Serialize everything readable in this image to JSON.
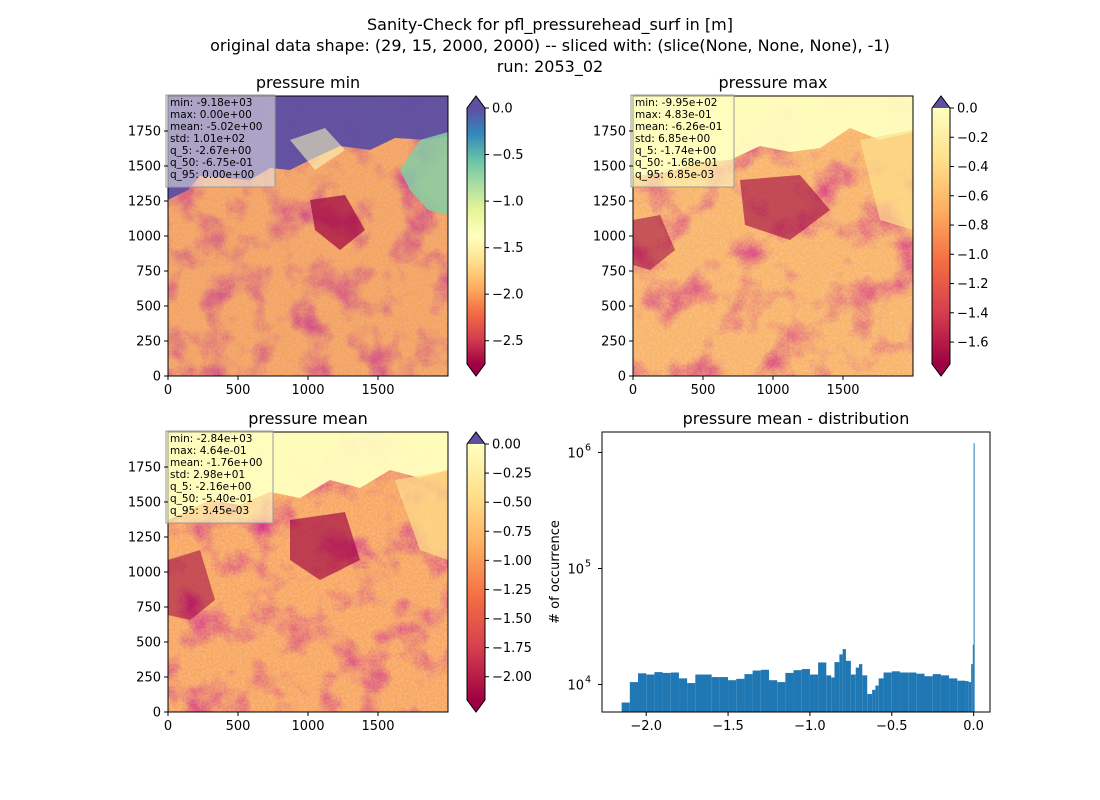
{
  "figure": {
    "title_lines": [
      "Sanity-Check for pfl_pressurehead_surf in [m]",
      "original data shape: (29, 15, 2000, 2000) -- sliced with: (slice(None, None, None), -1)",
      "run: 2053_02"
    ]
  },
  "chart_data": [
    {
      "type": "heatmap",
      "title": "pressure min",
      "colormap": "Spectral",
      "extend_top_color": "#5e4fa2",
      "extend_bottom_color": "#9e0142",
      "xlim": [
        0,
        2000
      ],
      "ylim": [
        0,
        2000
      ],
      "xticks": [
        "0",
        "500",
        "1000",
        "1500"
      ],
      "yticks": [
        "0",
        "250",
        "500",
        "750",
        "1000",
        "1250",
        "1500",
        "1750"
      ],
      "colorbar": {
        "range": [
          -2.75,
          0.0
        ],
        "ticks": [
          "0.0",
          "−0.5",
          "−1.0",
          "−1.5",
          "−2.0",
          "−2.5"
        ],
        "tick_values": [
          0.0,
          -0.5,
          -1.0,
          -1.5,
          -2.0,
          -2.5
        ]
      },
      "stats": [
        "min: -9.18e+03",
        "max: 0.00e+00",
        "mean: -5.02e+00",
        "std: 1.01e+02",
        "q_5: -2.67e+00",
        "q_50: -6.75e-01",
        "q_95: 0.00e+00"
      ]
    },
    {
      "type": "heatmap",
      "title": "pressure max",
      "colormap": "Spectral",
      "extend_top_color": "#5e4fa2",
      "extend_bottom_color": "#9e0142",
      "xlim": [
        0,
        2000
      ],
      "ylim": [
        0,
        2000
      ],
      "xticks": [
        "0",
        "500",
        "1000",
        "1500"
      ],
      "yticks": [
        "0",
        "250",
        "500",
        "750",
        "1000",
        "1250",
        "1500",
        "1750"
      ],
      "colorbar": {
        "range": [
          -1.75,
          0.0
        ],
        "ticks": [
          "0.0",
          "−0.2",
          "−0.4",
          "−0.6",
          "−0.8",
          "−1.0",
          "−1.2",
          "−1.4",
          "−1.6"
        ],
        "tick_values": [
          0.0,
          -0.2,
          -0.4,
          -0.6,
          -0.8,
          -1.0,
          -1.2,
          -1.4,
          -1.6
        ]
      },
      "stats": [
        "min: -9.95e+02",
        "max: 4.83e-01",
        "mean: -6.26e-01",
        "std: 6.85e+00",
        "q_5: -1.74e+00",
        "q_50: -1.68e-01",
        "q_95: 6.85e-03"
      ]
    },
    {
      "type": "heatmap",
      "title": "pressure mean",
      "colormap": "Spectral",
      "extend_top_color": "#5e4fa2",
      "extend_bottom_color": "#9e0142",
      "xlim": [
        0,
        2000
      ],
      "ylim": [
        0,
        2000
      ],
      "xticks": [
        "0",
        "500",
        "1000",
        "1500"
      ],
      "yticks": [
        "0",
        "250",
        "500",
        "750",
        "1000",
        "1250",
        "1500",
        "1750"
      ],
      "colorbar": {
        "range": [
          -2.2,
          0.0
        ],
        "ticks": [
          "0.00",
          "−0.25",
          "−0.50",
          "−0.75",
          "−1.00",
          "−1.25",
          "−1.50",
          "−1.75",
          "−2.00"
        ],
        "tick_values": [
          0.0,
          -0.25,
          -0.5,
          -0.75,
          -1.0,
          -1.25,
          -1.5,
          -1.75,
          -2.0
        ]
      },
      "stats": [
        "min: -2.84e+03",
        "max: 4.64e-01",
        "mean: -1.76e+00",
        "std: 2.98e+01",
        "q_5: -2.16e+00",
        "q_50: -5.40e-01",
        "q_95: 3.45e-03"
      ]
    },
    {
      "type": "bar",
      "title": "pressure mean - distribution",
      "ylabel": "# of occurrence",
      "xlabel": "",
      "yscale": "log",
      "color": "#1f77b4",
      "xlim": [
        -2.27,
        0.1
      ],
      "ylim": [
        5800,
        1500000
      ],
      "xticks": [
        "−2.0",
        "−1.5",
        "−1.0",
        "−0.5",
        "0.0"
      ],
      "xtick_values": [
        -2.0,
        -1.5,
        -1.0,
        -0.5,
        0.0
      ],
      "yticks": [
        "10",
        "10",
        "10"
      ],
      "ytick_exponents": [
        "4",
        "5",
        "6"
      ],
      "ytick_values": [
        10000,
        100000,
        1000000
      ],
      "bin_width": 0.011,
      "x": [
        -2.15,
        -2.1,
        -2.05,
        -2.0,
        -1.95,
        -1.9,
        -1.85,
        -1.8,
        -1.75,
        -1.7,
        -1.65,
        -1.6,
        -1.55,
        -1.5,
        -1.45,
        -1.4,
        -1.35,
        -1.3,
        -1.25,
        -1.2,
        -1.15,
        -1.1,
        -1.05,
        -1.0,
        -0.95,
        -0.9,
        -0.87,
        -0.85,
        -0.82,
        -0.8,
        -0.78,
        -0.75,
        -0.72,
        -0.7,
        -0.68,
        -0.65,
        -0.62,
        -0.6,
        -0.58,
        -0.55,
        -0.5,
        -0.45,
        -0.4,
        -0.35,
        -0.3,
        -0.25,
        -0.2,
        -0.15,
        -0.1,
        -0.05,
        -0.03,
        -0.015,
        -0.005,
        0.0
      ],
      "values": [
        7000,
        10500,
        12500,
        12200,
        12800,
        12600,
        12700,
        11300,
        10300,
        12200,
        12200,
        11600,
        11600,
        10900,
        11200,
        12300,
        13200,
        13400,
        10900,
        10500,
        12600,
        13300,
        13600,
        12200,
        15500,
        12000,
        11500,
        15600,
        18200,
        20200,
        16000,
        12200,
        14000,
        15000,
        12000,
        8300,
        9000,
        9800,
        11300,
        12700,
        13000,
        12700,
        12700,
        12400,
        11800,
        12300,
        12000,
        11300,
        10800,
        10700,
        10500,
        15000,
        22000,
        1200000
      ]
    }
  ]
}
